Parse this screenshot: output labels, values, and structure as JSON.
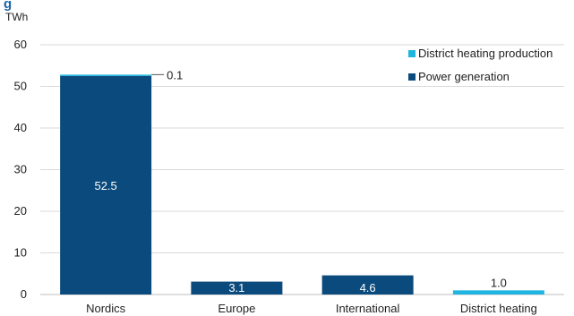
{
  "chart_data": {
    "type": "bar",
    "title": "g",
    "ylabel": "TWh",
    "ylim": [
      0,
      60
    ],
    "yticks": [
      0,
      10,
      20,
      30,
      40,
      50,
      60
    ],
    "grid": true,
    "legend_position": "top-right",
    "categories": [
      "Nordics",
      "Europe",
      "International",
      "District heating"
    ],
    "series": [
      {
        "name": "Power generation",
        "color": "#0b4a7c",
        "values": [
          52.5,
          3.1,
          4.6,
          0
        ],
        "labels": [
          "52.5",
          "3.1",
          "4.6",
          ""
        ]
      },
      {
        "name": "District heating production",
        "color": "#1fb5e0",
        "values": [
          0.1,
          0,
          0,
          1.0
        ],
        "labels": [
          "0.1",
          "",
          "",
          "1.0"
        ]
      }
    ]
  }
}
